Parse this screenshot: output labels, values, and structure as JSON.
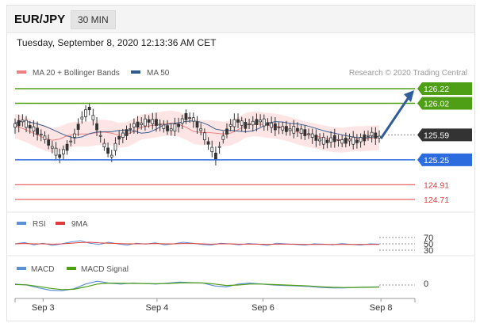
{
  "header": {
    "symbol": "EUR/JPY",
    "timeframe": "30 MIN"
  },
  "datetime": "Tuesday, September 8, 2020 12:13:36 AM CET",
  "copyright": "Research © 2020 Trading Central",
  "colors": {
    "green": "#4e9f16",
    "blue": "#2d6cdf",
    "red": "#e03b3b",
    "dark": "#333333",
    "candle_up": "#333333",
    "band_fill": "#fde5e5",
    "ma20": "#f08080",
    "ma50": "#3a5d8f",
    "arrow": "#2f5d9a",
    "rsi": "#5b8fd6",
    "rsi_ma": "#e03b3b",
    "macd": "#5b8fd6",
    "macd_signal": "#4e9f16"
  },
  "chart_data": [
    {
      "type": "line",
      "panel": "price",
      "legend": [
        {
          "label": "MA 20 + Bollinger Bands",
          "color": "#f08080"
        },
        {
          "label": "MA 50",
          "color": "#2e5a8c"
        }
      ],
      "ylim": [
        124.6,
        126.35
      ],
      "levels": [
        {
          "value": 126.22,
          "label": "126.22",
          "color": "#4e9f16",
          "style": "tag"
        },
        {
          "value": 126.02,
          "label": "126.02",
          "color": "#4e9f16",
          "style": "tag"
        },
        {
          "value": 125.59,
          "label": "125.59",
          "color": "#333333",
          "style": "current"
        },
        {
          "value": 125.25,
          "label": "125.25",
          "color": "#2d6cdf",
          "style": "tag"
        },
        {
          "value": 124.91,
          "label": "124.91",
          "color": "#e03b3b",
          "style": "text"
        },
        {
          "value": 124.71,
          "label": "124.71",
          "color": "#e03b3b",
          "style": "text"
        }
      ],
      "price_series": [
        125.72,
        125.78,
        125.7,
        125.64,
        125.55,
        125.42,
        125.3,
        125.42,
        125.58,
        125.82,
        125.95,
        125.7,
        125.45,
        125.3,
        125.55,
        125.62,
        125.72,
        125.74,
        125.78,
        125.76,
        125.7,
        125.66,
        125.72,
        125.84,
        125.8,
        125.66,
        125.48,
        125.3,
        125.55,
        125.72,
        125.78,
        125.72,
        125.75,
        125.78,
        125.74,
        125.7,
        125.68,
        125.66,
        125.66,
        125.62,
        125.58,
        125.52,
        125.5,
        125.54,
        125.5,
        125.52,
        125.5,
        125.55,
        125.6,
        125.56
      ],
      "forecast_target": 126.22,
      "x_ticks": [
        {
          "label": "Sep 3",
          "pos": 0.07
        },
        {
          "label": "Sep 4",
          "pos": 0.355
        },
        {
          "label": "Sep 6",
          "pos": 0.62
        },
        {
          "label": "Sep 8",
          "pos": 0.915
        }
      ]
    },
    {
      "type": "line",
      "panel": "rsi",
      "legend": [
        {
          "label": "RSI",
          "color": "#5b8fd6"
        },
        {
          "label": "9MA",
          "color": "#e03b3b"
        }
      ],
      "ylim": [
        20,
        80
      ],
      "levels": [
        70,
        50,
        30
      ],
      "level_labels": [
        "70",
        "50",
        "30"
      ],
      "series": [
        {
          "name": "RSI",
          "values": [
            50,
            54,
            47,
            52,
            45,
            50,
            56,
            60,
            52,
            48,
            55,
            50,
            46,
            52,
            49,
            53,
            47,
            50,
            55,
            52,
            48,
            46,
            52,
            50,
            47,
            51,
            49,
            45,
            52,
            50,
            48,
            46,
            50,
            49,
            47,
            51,
            48,
            46,
            50,
            49
          ]
        },
        {
          "name": "9MA",
          "values": [
            50,
            51,
            50,
            50,
            49,
            50,
            52,
            54,
            55,
            53,
            52,
            51,
            50,
            50,
            50,
            51,
            50,
            50,
            51,
            51,
            50,
            49,
            50,
            50,
            49,
            49,
            49,
            48,
            49,
            49,
            49,
            48,
            48,
            48,
            48,
            48,
            48,
            48,
            48,
            48
          ]
        }
      ]
    },
    {
      "type": "line",
      "panel": "macd",
      "legend": [
        {
          "label": "MACD",
          "color": "#5b8fd6"
        },
        {
          "label": "MACD Signal",
          "color": "#4e9f16"
        }
      ],
      "ylim": [
        -1,
        1
      ],
      "levels": [
        0
      ],
      "level_labels": [
        "0"
      ],
      "series": [
        {
          "name": "MACD",
          "values": [
            0.1,
            0.0,
            -0.3,
            -0.55,
            -0.6,
            -0.4,
            0.1,
            0.4,
            0.2,
            0.1,
            0.2,
            0.15,
            0.1,
            0.2,
            0.3,
            0.25,
            0.2,
            -0.1,
            -0.2,
            0.1,
            0.2,
            0.1,
            0.0,
            -0.05,
            -0.1,
            -0.15,
            -0.25,
            -0.3,
            -0.3,
            -0.25,
            -0.22,
            -0.2
          ]
        },
        {
          "name": "MACD Signal",
          "values": [
            0.05,
            0.02,
            -0.15,
            -0.35,
            -0.48,
            -0.45,
            -0.2,
            0.1,
            0.2,
            0.18,
            0.17,
            0.16,
            0.14,
            0.16,
            0.22,
            0.24,
            0.22,
            0.1,
            -0.05,
            0.0,
            0.1,
            0.1,
            0.05,
            0.0,
            -0.05,
            -0.1,
            -0.18,
            -0.24,
            -0.27,
            -0.26,
            -0.24,
            -0.22
          ]
        }
      ]
    }
  ]
}
